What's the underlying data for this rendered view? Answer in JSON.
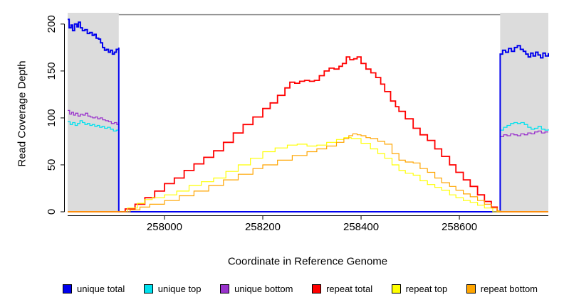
{
  "chart_data": {
    "type": "line",
    "title": "",
    "xlabel": "Coordinate in Reference Genome",
    "ylabel": "Read Coverage Depth",
    "xlim": [
      257803,
      258781
    ],
    "ylim": [
      0,
      212
    ],
    "x_ticks": [
      258000,
      258200,
      258400,
      258600
    ],
    "y_ticks": [
      0,
      50,
      100,
      150,
      200
    ],
    "grid": false,
    "legend_position": "bottom",
    "axis_color": "#000000",
    "shaded_regions": [
      {
        "x1": 257803,
        "x2": 257907,
        "color": "#dcdcdc"
      },
      {
        "x1": 258683,
        "x2": 258781,
        "color": "#dcdcdc"
      }
    ],
    "top_marker_line": {
      "x1": 257907,
      "x2": 258683,
      "y": 210,
      "color": "#8c8c8c"
    },
    "draw_order": [
      1,
      2,
      0,
      3,
      4,
      5
    ],
    "series": [
      {
        "name": "unique total",
        "color": "#0000ee",
        "width": 2.0,
        "points": [
          [
            257803,
            205
          ],
          [
            257806,
            196
          ],
          [
            257810,
            199
          ],
          [
            257813,
            193
          ],
          [
            257817,
            200
          ],
          [
            257822,
            197
          ],
          [
            257825,
            202
          ],
          [
            257829,
            196
          ],
          [
            257833,
            193
          ],
          [
            257838,
            194
          ],
          [
            257843,
            190
          ],
          [
            257848,
            191
          ],
          [
            257853,
            188
          ],
          [
            257857,
            189
          ],
          [
            257861,
            185
          ],
          [
            257866,
            184
          ],
          [
            257870,
            180
          ],
          [
            257874,
            175
          ],
          [
            257878,
            172
          ],
          [
            257882,
            173
          ],
          [
            257886,
            170
          ],
          [
            257890,
            172
          ],
          [
            257894,
            168
          ],
          [
            257898,
            170
          ],
          [
            257902,
            173
          ],
          [
            257907,
            175
          ],
          [
            257907,
            0
          ],
          [
            258683,
            0
          ],
          [
            258683,
            168
          ],
          [
            258688,
            172
          ],
          [
            258694,
            170
          ],
          [
            258700,
            174
          ],
          [
            258706,
            171
          ],
          [
            258712,
            175
          ],
          [
            258718,
            177
          ],
          [
            258724,
            173
          ],
          [
            258730,
            171
          ],
          [
            258735,
            168
          ],
          [
            258740,
            165
          ],
          [
            258745,
            169
          ],
          [
            258750,
            166
          ],
          [
            258755,
            170
          ],
          [
            258760,
            167
          ],
          [
            258765,
            164
          ],
          [
            258770,
            169
          ],
          [
            258775,
            166
          ],
          [
            258781,
            169
          ]
        ]
      },
      {
        "name": "unique top",
        "color": "#00e1ee",
        "width": 1.3,
        "points": [
          [
            257803,
            96
          ],
          [
            257808,
            93
          ],
          [
            257813,
            95
          ],
          [
            257818,
            92
          ],
          [
            257823,
            94
          ],
          [
            257828,
            97
          ],
          [
            257833,
            95
          ],
          [
            257838,
            93
          ],
          [
            257843,
            94
          ],
          [
            257848,
            92
          ],
          [
            257853,
            93
          ],
          [
            257858,
            91
          ],
          [
            257863,
            92
          ],
          [
            257868,
            90
          ],
          [
            257873,
            91
          ],
          [
            257878,
            89
          ],
          [
            257884,
            90
          ],
          [
            257890,
            88
          ],
          [
            257896,
            86
          ],
          [
            257902,
            87
          ],
          [
            257907,
            85
          ],
          [
            257907,
            0
          ],
          [
            258683,
            0
          ],
          [
            258683,
            87
          ],
          [
            258690,
            90
          ],
          [
            258697,
            92
          ],
          [
            258704,
            94
          ],
          [
            258711,
            95
          ],
          [
            258718,
            94
          ],
          [
            258725,
            95
          ],
          [
            258732,
            93
          ],
          [
            258739,
            90
          ],
          [
            258746,
            88
          ],
          [
            258753,
            89
          ],
          [
            258760,
            91
          ],
          [
            258767,
            88
          ],
          [
            258774,
            87
          ],
          [
            258781,
            88
          ]
        ]
      },
      {
        "name": "unique bottom",
        "color": "#9932cc",
        "width": 1.3,
        "points": [
          [
            257803,
            108
          ],
          [
            257807,
            104
          ],
          [
            257811,
            106
          ],
          [
            257815,
            103
          ],
          [
            257819,
            105
          ],
          [
            257824,
            102
          ],
          [
            257829,
            104
          ],
          [
            257834,
            103
          ],
          [
            257839,
            105
          ],
          [
            257844,
            102
          ],
          [
            257849,
            101
          ],
          [
            257854,
            100
          ],
          [
            257859,
            101
          ],
          [
            257864,
            99
          ],
          [
            257869,
            100
          ],
          [
            257874,
            98
          ],
          [
            257880,
            97
          ],
          [
            257886,
            96
          ],
          [
            257892,
            94
          ],
          [
            257898,
            95
          ],
          [
            257903,
            93
          ],
          [
            257907,
            93
          ],
          [
            257907,
            0
          ],
          [
            258683,
            0
          ],
          [
            258683,
            80
          ],
          [
            258690,
            82
          ],
          [
            258697,
            81
          ],
          [
            258704,
            83
          ],
          [
            258711,
            82
          ],
          [
            258718,
            81
          ],
          [
            258725,
            83
          ],
          [
            258732,
            82
          ],
          [
            258739,
            84
          ],
          [
            258746,
            83
          ],
          [
            258753,
            85
          ],
          [
            258760,
            86
          ],
          [
            258767,
            84
          ],
          [
            258774,
            85
          ],
          [
            258781,
            85
          ]
        ]
      },
      {
        "name": "repeat total",
        "color": "#ff0000",
        "width": 1.8,
        "points": [
          [
            257803,
            0
          ],
          [
            257907,
            0
          ],
          [
            257920,
            3
          ],
          [
            257940,
            8
          ],
          [
            257960,
            15
          ],
          [
            257980,
            22
          ],
          [
            258000,
            30
          ],
          [
            258020,
            36
          ],
          [
            258040,
            44
          ],
          [
            258060,
            51
          ],
          [
            258080,
            58
          ],
          [
            258100,
            65
          ],
          [
            258120,
            74
          ],
          [
            258140,
            84
          ],
          [
            258160,
            93
          ],
          [
            258180,
            101
          ],
          [
            258200,
            110
          ],
          [
            258215,
            116
          ],
          [
            258230,
            124
          ],
          [
            258245,
            132
          ],
          [
            258255,
            138
          ],
          [
            258265,
            137
          ],
          [
            258275,
            139
          ],
          [
            258285,
            140
          ],
          [
            258295,
            139
          ],
          [
            258305,
            140
          ],
          [
            258315,
            145
          ],
          [
            258325,
            150
          ],
          [
            258335,
            153
          ],
          [
            258345,
            152
          ],
          [
            258355,
            155
          ],
          [
            258362,
            158
          ],
          [
            258370,
            165
          ],
          [
            258377,
            162
          ],
          [
            258385,
            163
          ],
          [
            258392,
            165
          ],
          [
            258400,
            158
          ],
          [
            258410,
            152
          ],
          [
            258420,
            148
          ],
          [
            258430,
            143
          ],
          [
            258440,
            136
          ],
          [
            258448,
            128
          ],
          [
            258460,
            118
          ],
          [
            258470,
            112
          ],
          [
            258477,
            107
          ],
          [
            258490,
            99
          ],
          [
            258506,
            89
          ],
          [
            258520,
            82
          ],
          [
            258535,
            76
          ],
          [
            258550,
            67
          ],
          [
            258564,
            59
          ],
          [
            258580,
            50
          ],
          [
            258593,
            42
          ],
          [
            258608,
            34
          ],
          [
            258622,
            27
          ],
          [
            258637,
            18
          ],
          [
            258651,
            11
          ],
          [
            258665,
            5
          ],
          [
            258677,
            0
          ],
          [
            258683,
            0
          ],
          [
            258781,
            0
          ]
        ]
      },
      {
        "name": "repeat top",
        "color": "#ffff00",
        "width": 1.2,
        "points": [
          [
            257803,
            0
          ],
          [
            257907,
            0
          ],
          [
            257925,
            4
          ],
          [
            257945,
            9
          ],
          [
            257960,
            13
          ],
          [
            257975,
            15
          ],
          [
            258000,
            18
          ],
          [
            258025,
            22
          ],
          [
            258050,
            28
          ],
          [
            258075,
            32
          ],
          [
            258100,
            36
          ],
          [
            258125,
            43
          ],
          [
            258150,
            50
          ],
          [
            258175,
            57
          ],
          [
            258200,
            64
          ],
          [
            258225,
            68
          ],
          [
            258250,
            71
          ],
          [
            258270,
            72
          ],
          [
            258290,
            70
          ],
          [
            258310,
            71
          ],
          [
            258330,
            74
          ],
          [
            258350,
            77
          ],
          [
            258365,
            79
          ],
          [
            258380,
            78
          ],
          [
            258400,
            73
          ],
          [
            258419,
            67
          ],
          [
            258434,
            62
          ],
          [
            258448,
            57
          ],
          [
            258463,
            50
          ],
          [
            258477,
            44
          ],
          [
            258490,
            41
          ],
          [
            258506,
            39
          ],
          [
            258520,
            33
          ],
          [
            258535,
            29
          ],
          [
            258550,
            26
          ],
          [
            258564,
            23
          ],
          [
            258580,
            18
          ],
          [
            258593,
            15
          ],
          [
            258608,
            12
          ],
          [
            258622,
            10
          ],
          [
            258637,
            7
          ],
          [
            258651,
            4
          ],
          [
            258668,
            0
          ],
          [
            258683,
            0
          ],
          [
            258781,
            0
          ]
        ]
      },
      {
        "name": "repeat bottom",
        "color": "#ffa500",
        "width": 1.2,
        "points": [
          [
            257803,
            0
          ],
          [
            257907,
            0
          ],
          [
            257930,
            2
          ],
          [
            257950,
            5
          ],
          [
            257970,
            8
          ],
          [
            258000,
            12
          ],
          [
            258030,
            17
          ],
          [
            258060,
            22
          ],
          [
            258090,
            28
          ],
          [
            258120,
            34
          ],
          [
            258150,
            40
          ],
          [
            258180,
            46
          ],
          [
            258200,
            50
          ],
          [
            258230,
            55
          ],
          [
            258260,
            60
          ],
          [
            258290,
            64
          ],
          [
            258310,
            67
          ],
          [
            258330,
            70
          ],
          [
            258350,
            74
          ],
          [
            258365,
            78
          ],
          [
            258375,
            81
          ],
          [
            258383,
            83
          ],
          [
            258392,
            82
          ],
          [
            258400,
            81
          ],
          [
            258410,
            79
          ],
          [
            258419,
            78
          ],
          [
            258434,
            75
          ],
          [
            258448,
            72
          ],
          [
            258463,
            62
          ],
          [
            258477,
            55
          ],
          [
            258490,
            53
          ],
          [
            258506,
            52
          ],
          [
            258520,
            46
          ],
          [
            258535,
            42
          ],
          [
            258550,
            36
          ],
          [
            258564,
            31
          ],
          [
            258580,
            27
          ],
          [
            258593,
            23
          ],
          [
            258608,
            19
          ],
          [
            258622,
            16
          ],
          [
            258637,
            12
          ],
          [
            258651,
            8
          ],
          [
            258665,
            4
          ],
          [
            258677,
            1
          ],
          [
            258683,
            0
          ],
          [
            258781,
            0
          ]
        ]
      }
    ]
  }
}
